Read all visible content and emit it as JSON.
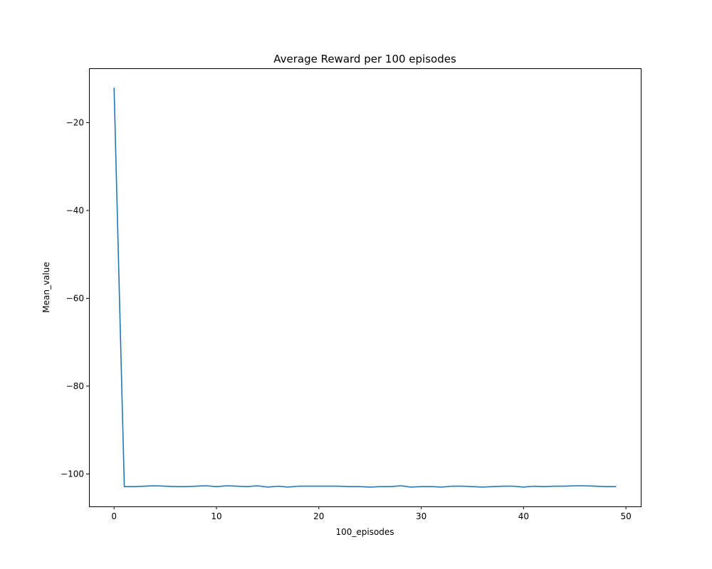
{
  "chart_data": {
    "type": "line",
    "title": "Average Reward per 100 episodes",
    "xlabel": "100_episodes",
    "ylabel": "Mean_value",
    "xlim": [
      -2.45,
      51.45
    ],
    "ylim": [
      -107.4,
      -7.6
    ],
    "xticks": [
      0,
      10,
      20,
      30,
      40,
      50
    ],
    "yticks": [
      -100,
      -80,
      -60,
      -40,
      -20
    ],
    "grid": false,
    "series": [
      {
        "color": "#1f77b4",
        "x": [
          0,
          1,
          2,
          3,
          4,
          5,
          6,
          7,
          8,
          9,
          10,
          11,
          12,
          13,
          14,
          15,
          16,
          17,
          18,
          19,
          20,
          21,
          22,
          23,
          24,
          25,
          26,
          27,
          28,
          29,
          30,
          31,
          32,
          33,
          34,
          35,
          36,
          37,
          38,
          39,
          40,
          41,
          42,
          43,
          44,
          45,
          46,
          47,
          48,
          49
        ],
        "y": [
          -12.1,
          -102.9,
          -102.9,
          -102.8,
          -102.7,
          -102.8,
          -102.9,
          -102.9,
          -102.8,
          -102.7,
          -102.9,
          -102.7,
          -102.8,
          -102.9,
          -102.7,
          -103.0,
          -102.8,
          -103.0,
          -102.8,
          -102.8,
          -102.8,
          -102.8,
          -102.8,
          -102.9,
          -102.9,
          -103.0,
          -102.9,
          -102.9,
          -102.7,
          -103.0,
          -102.9,
          -102.9,
          -103.0,
          -102.8,
          -102.8,
          -102.9,
          -103.0,
          -102.9,
          -102.8,
          -102.8,
          -103.0,
          -102.8,
          -102.9,
          -102.8,
          -102.8,
          -102.7,
          -102.7,
          -102.8,
          -102.9,
          -102.9
        ]
      }
    ]
  }
}
